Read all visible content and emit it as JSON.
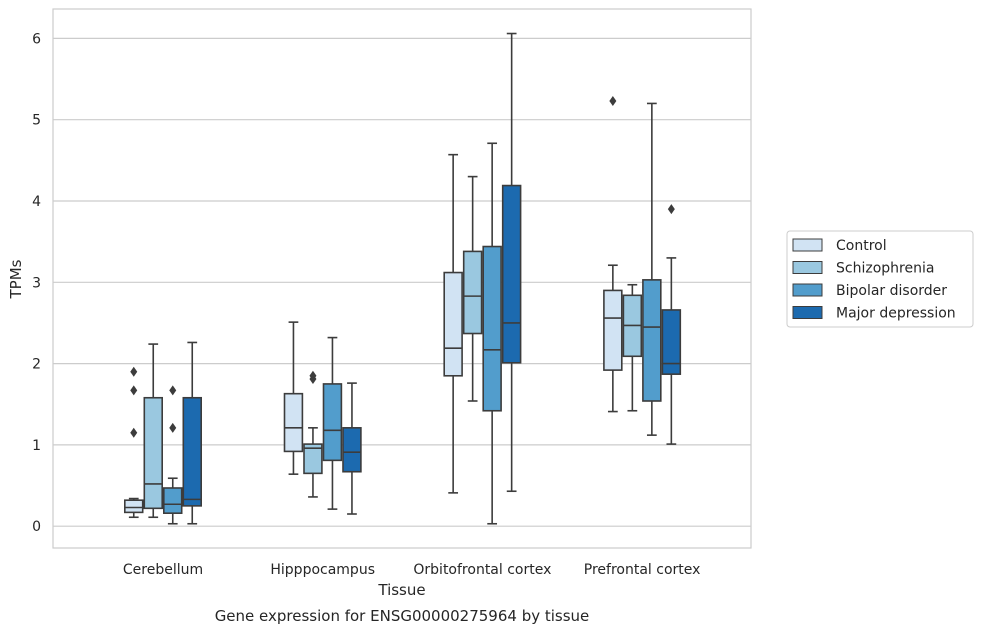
{
  "chart_data": {
    "type": "box",
    "title": "",
    "caption": "Gene expression for ENSG00000275964 by tissue",
    "xlabel": "Tissue",
    "ylabel": "TPMs",
    "ylim": [
      -0.25,
      6.35
    ],
    "yticks": [
      0,
      1,
      2,
      3,
      4,
      5,
      6
    ],
    "grid": "horizontal",
    "legend_placement": "right",
    "categories": [
      "Cerebellum",
      "Hipppocampus",
      "Orbitofrontal cortex",
      "Prefrontal cortex"
    ],
    "series": [
      {
        "name": "Control",
        "color": "#d1e3f3",
        "boxes": [
          {
            "whislo": 0.11,
            "q1": 0.17,
            "med": 0.23,
            "q3": 0.32,
            "whishi": 0.34,
            "fliers": [
              1.15,
              1.67,
              1.9
            ]
          },
          {
            "whislo": 0.64,
            "q1": 0.92,
            "med": 1.21,
            "q3": 1.63,
            "whishi": 2.51,
            "fliers": []
          },
          {
            "whislo": 0.41,
            "q1": 1.85,
            "med": 2.19,
            "q3": 3.12,
            "whishi": 4.57,
            "fliers": []
          },
          {
            "whislo": 1.41,
            "q1": 1.92,
            "med": 2.56,
            "q3": 2.9,
            "whishi": 3.21,
            "fliers": [
              5.23
            ]
          }
        ]
      },
      {
        "name": "Schizophrenia",
        "color": "#9ac8e0",
        "boxes": [
          {
            "whislo": 0.11,
            "q1": 0.22,
            "med": 0.52,
            "q3": 1.58,
            "whishi": 2.24,
            "fliers": []
          },
          {
            "whislo": 0.36,
            "q1": 0.65,
            "med": 0.96,
            "q3": 1.01,
            "whishi": 1.21,
            "fliers": [
              1.81,
              1.85
            ]
          },
          {
            "whislo": 1.54,
            "q1": 2.37,
            "med": 2.83,
            "q3": 3.38,
            "whishi": 4.3,
            "fliers": []
          },
          {
            "whislo": 1.42,
            "q1": 2.09,
            "med": 2.47,
            "q3": 2.84,
            "whishi": 2.97,
            "fliers": []
          }
        ]
      },
      {
        "name": "Bipolar disorder",
        "color": "#529dcc",
        "boxes": [
          {
            "whislo": 0.03,
            "q1": 0.16,
            "med": 0.27,
            "q3": 0.47,
            "whishi": 0.59,
            "fliers": [
              1.21,
              1.67
            ]
          },
          {
            "whislo": 0.21,
            "q1": 0.81,
            "med": 1.18,
            "q3": 1.75,
            "whishi": 2.32,
            "fliers": []
          },
          {
            "whislo": 0.03,
            "q1": 1.42,
            "med": 2.17,
            "q3": 3.44,
            "whishi": 4.71,
            "fliers": []
          },
          {
            "whislo": 1.12,
            "q1": 1.54,
            "med": 2.45,
            "q3": 3.03,
            "whishi": 5.2,
            "fliers": []
          }
        ]
      },
      {
        "name": "Major depression",
        "color": "#1c6aaf",
        "boxes": [
          {
            "whislo": 0.03,
            "q1": 0.25,
            "med": 0.33,
            "q3": 1.58,
            "whishi": 2.26,
            "fliers": []
          },
          {
            "whislo": 0.15,
            "q1": 0.67,
            "med": 0.91,
            "q3": 1.21,
            "whishi": 1.76,
            "fliers": []
          },
          {
            "whislo": 0.43,
            "q1": 2.01,
            "med": 2.5,
            "q3": 4.19,
            "whishi": 6.06,
            "fliers": []
          },
          {
            "whislo": 1.01,
            "q1": 1.87,
            "med": 2.0,
            "q3": 2.66,
            "whishi": 3.3,
            "fliers": [
              3.9
            ]
          }
        ]
      }
    ]
  }
}
